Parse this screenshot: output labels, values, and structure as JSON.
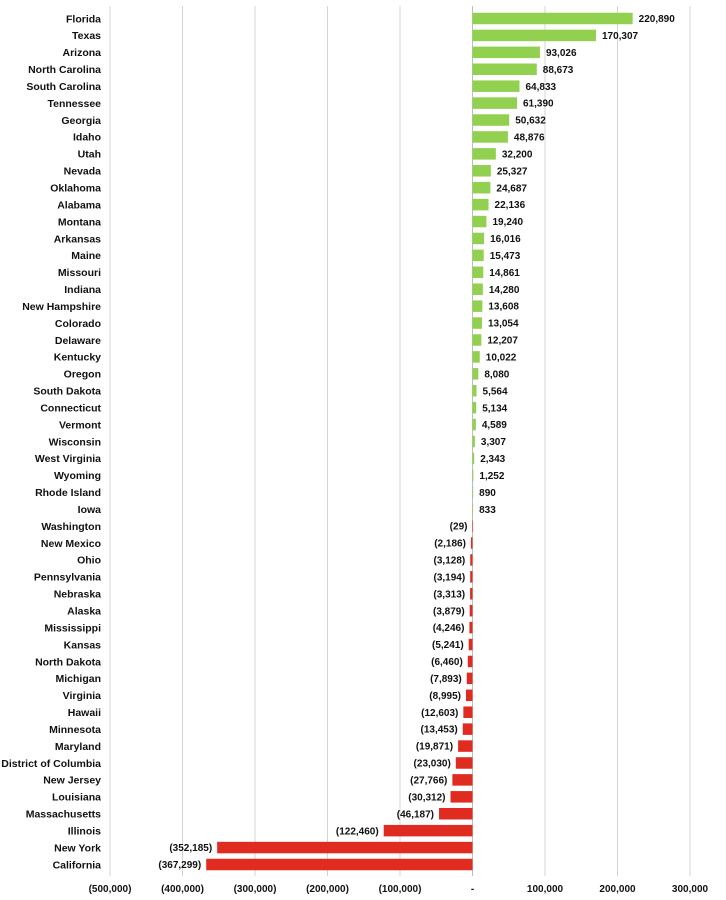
{
  "chart_data": {
    "type": "bar",
    "orientation": "horizontal",
    "colors": {
      "positive": "#92d050",
      "negative": "#e02b20",
      "grid": "#d4d4d4",
      "text": "#111111"
    },
    "grid": true,
    "legend": "none",
    "xlim": [
      -500000,
      300000
    ],
    "xticks": [
      -500000,
      -400000,
      -300000,
      -200000,
      -100000,
      0,
      100000,
      200000,
      300000
    ],
    "xtick_labels": [
      "(500,000)",
      "(400,000)",
      "(300,000)",
      "(200,000)",
      "(100,000)",
      "-",
      "100,000",
      "200,000",
      "300,000"
    ],
    "categories": [
      "Florida",
      "Texas",
      "Arizona",
      "North Carolina",
      "South Carolina",
      "Tennessee",
      "Georgia",
      "Idaho",
      "Utah",
      "Nevada",
      "Oklahoma",
      "Alabama",
      "Montana",
      "Arkansas",
      "Maine",
      "Missouri",
      "Indiana",
      "New Hampshire",
      "Colorado",
      "Delaware",
      "Kentucky",
      "Oregon",
      "South Dakota",
      "Connecticut",
      "Vermont",
      "Wisconsin",
      "West Virginia",
      "Wyoming",
      "Rhode Island",
      "Iowa",
      "Washington",
      "New Mexico",
      "Ohio",
      "Pennsylvania",
      "Nebraska",
      "Alaska",
      "Mississippi",
      "Kansas",
      "North Dakota",
      "Michigan",
      "Virginia",
      "Hawaii",
      "Minnesota",
      "Maryland",
      "District of Columbia",
      "New Jersey",
      "Louisiana",
      "Massachusetts",
      "Illinois",
      "New York",
      "California"
    ],
    "values": [
      220890,
      170307,
      93026,
      88673,
      64833,
      61390,
      50632,
      48876,
      32200,
      25327,
      24687,
      22136,
      19240,
      16016,
      15473,
      14861,
      14280,
      13608,
      13054,
      12207,
      10022,
      8080,
      5564,
      5134,
      4589,
      3307,
      2343,
      1252,
      890,
      833,
      -29,
      -2186,
      -3128,
      -3194,
      -3313,
      -3879,
      -4246,
      -5241,
      -6460,
      -7893,
      -8995,
      -12603,
      -13453,
      -19871,
      -23030,
      -27766,
      -30312,
      -46187,
      -122460,
      -352185,
      -367299
    ],
    "value_labels": [
      "220,890",
      "170,307",
      "93,026",
      "88,673",
      "64,833",
      "61,390",
      "50,632",
      "48,876",
      "32,200",
      "25,327",
      "24,687",
      "22,136",
      "19,240",
      "16,016",
      "15,473",
      "14,861",
      "14,280",
      "13,608",
      "13,054",
      "12,207",
      "10,022",
      "8,080",
      "5,564",
      "5,134",
      "4,589",
      "3,307",
      "2,343",
      "1,252",
      "890",
      "833",
      "(29)",
      "(2,186)",
      "(3,128)",
      "(3,194)",
      "(3,313)",
      "(3,879)",
      "(4,246)",
      "(5,241)",
      "(6,460)",
      "(7,893)",
      "(8,995)",
      "(12,603)",
      "(13,453)",
      "(19,871)",
      "(23,030)",
      "(27,766)",
      "(30,312)",
      "(46,187)",
      "(122,460)",
      "(352,185)",
      "(367,299)"
    ]
  }
}
